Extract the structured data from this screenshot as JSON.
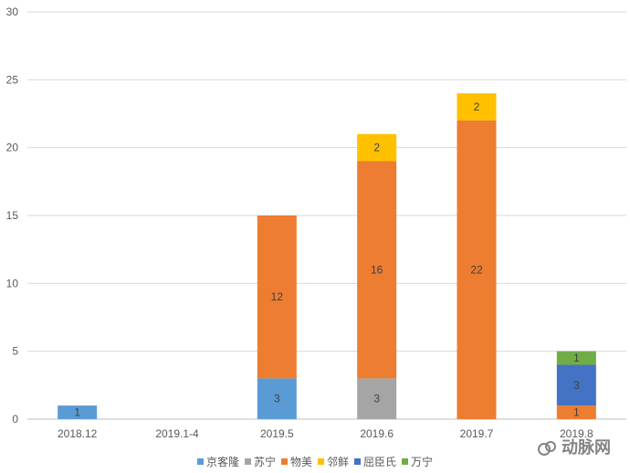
{
  "chart_data": {
    "type": "bar",
    "stacked": true,
    "categories": [
      "2018.12",
      "2019.1-4",
      "2019.5",
      "2019.6",
      "2019.7",
      "2019.8"
    ],
    "series": [
      {
        "name": "京客隆",
        "color": "#5b9bd5",
        "values": [
          1,
          0,
          3,
          0,
          0,
          0
        ]
      },
      {
        "name": "苏宁",
        "color": "#a5a5a5",
        "values": [
          0,
          0,
          0,
          3,
          0,
          0
        ]
      },
      {
        "name": "物美",
        "color": "#ed7d31",
        "values": [
          0,
          0,
          12,
          16,
          22,
          1
        ]
      },
      {
        "name": "邻鲜",
        "color": "#ffc000",
        "values": [
          0,
          0,
          0,
          2,
          2,
          0
        ]
      },
      {
        "name": "屈臣氏",
        "color": "#4472c4",
        "values": [
          0,
          0,
          0,
          0,
          0,
          3
        ]
      },
      {
        "name": "万宁",
        "color": "#70ad47",
        "values": [
          0,
          0,
          0,
          0,
          0,
          1
        ]
      }
    ],
    "ylim": [
      0,
      30
    ],
    "yticks": [
      0,
      5,
      10,
      15,
      20,
      25,
      30
    ],
    "grid": true,
    "legend_position": "bottom",
    "title": "",
    "xlabel": "",
    "ylabel": ""
  },
  "watermark": {
    "text": "动脉网"
  }
}
